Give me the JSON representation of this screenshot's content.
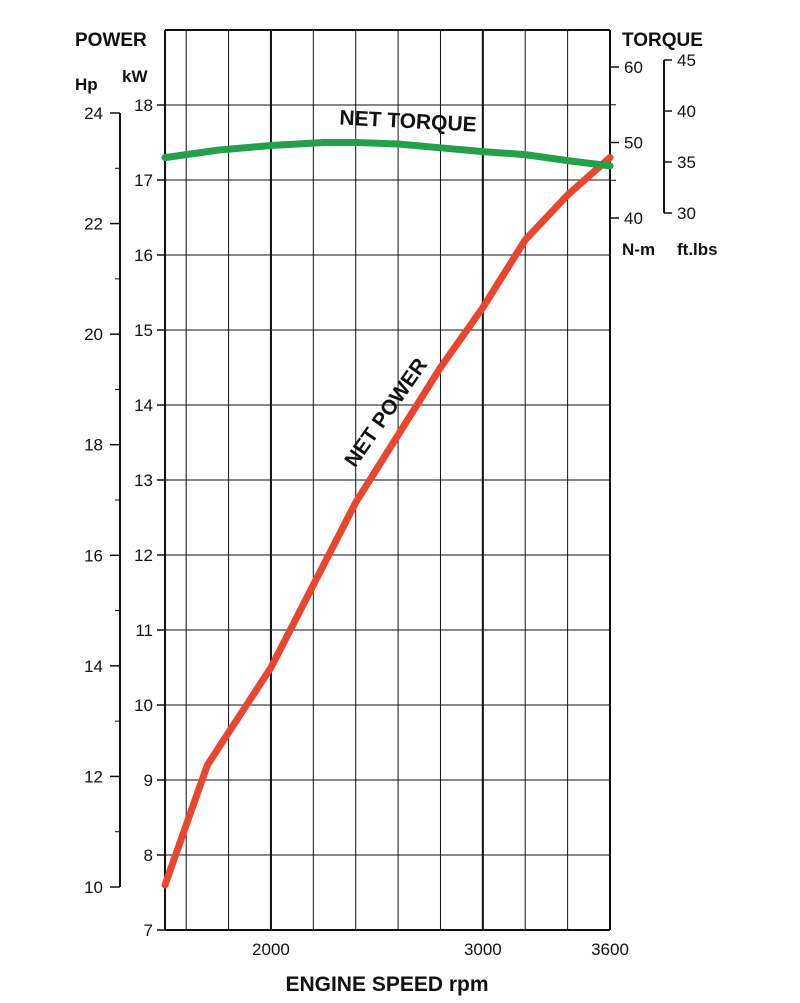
{
  "chart_data": {
    "type": "line",
    "xlabel": "ENGINE SPEED rpm",
    "xlim": [
      1500,
      3600
    ],
    "x_ticks": [
      2000,
      3000,
      3600
    ],
    "left_axis": {
      "title": "POWER",
      "kw": {
        "unit": "kW",
        "ylim": [
          7,
          18
        ],
        "ticks": [
          7,
          8,
          9,
          10,
          11,
          12,
          13,
          14,
          15,
          16,
          17,
          18
        ]
      },
      "hp": {
        "unit": "Hp",
        "ylim": [
          10,
          24
        ],
        "ticks": [
          10,
          12,
          14,
          16,
          18,
          20,
          22,
          24
        ]
      }
    },
    "right_axis": {
      "title": "TORQUE",
      "nm": {
        "unit": "N-m",
        "ylim": [
          40,
          60
        ],
        "ticks": [
          40,
          50,
          60
        ]
      },
      "ftlbs": {
        "unit": "ft.lbs",
        "ylim": [
          30,
          45
        ],
        "ticks": [
          30,
          35,
          40,
          45
        ]
      }
    },
    "series": [
      {
        "name": "NET POWER",
        "color": "#e8462e",
        "axis": "kW",
        "x": [
          1500,
          1700,
          2000,
          2200,
          2400,
          2600,
          2800,
          3000,
          3200,
          3400,
          3600
        ],
        "y": [
          7.6,
          9.2,
          10.5,
          11.6,
          12.7,
          13.6,
          14.5,
          15.3,
          16.2,
          16.8,
          17.3
        ]
      },
      {
        "name": "NET TORQUE",
        "color": "#23a14a",
        "axis": "N-m",
        "x": [
          1500,
          1750,
          2000,
          2250,
          2400,
          2600,
          2800,
          3000,
          3200,
          3400,
          3600
        ],
        "y": [
          48.0,
          49.0,
          49.6,
          50.0,
          50.0,
          49.8,
          49.3,
          48.8,
          48.4,
          47.6,
          46.9
        ]
      }
    ]
  }
}
